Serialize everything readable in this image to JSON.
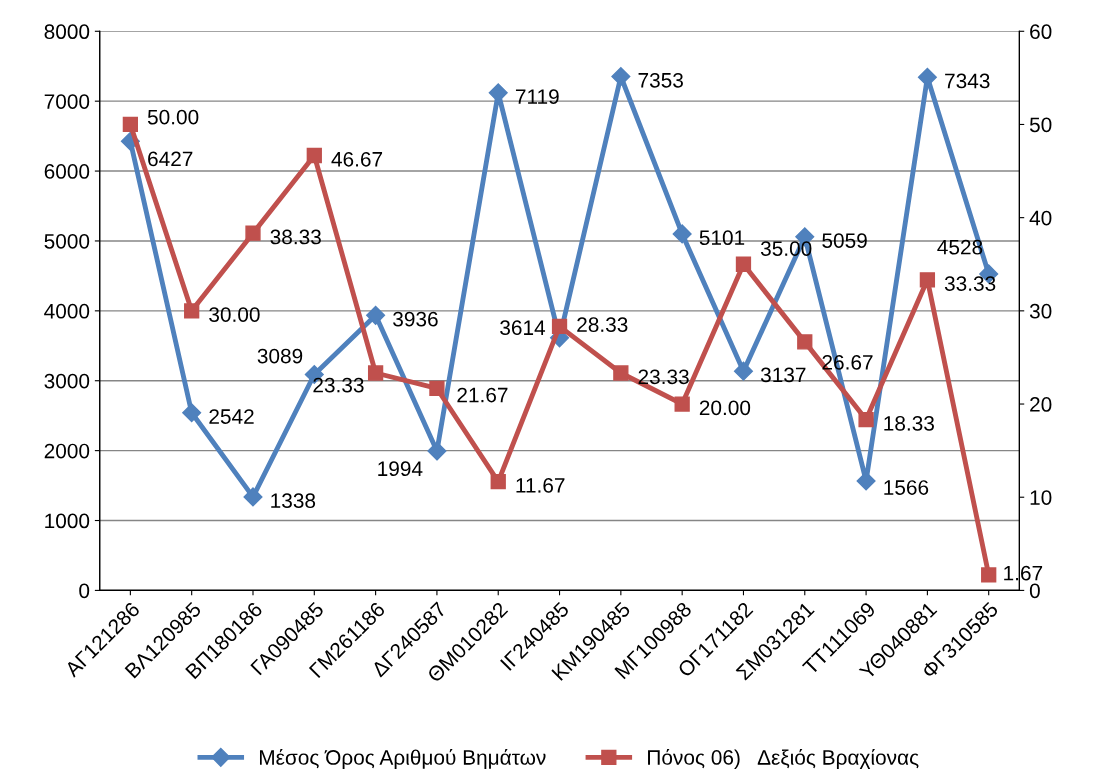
{
  "chart_data": {
    "type": "line",
    "categories": [
      "ΑΓ121286",
      "ΒΛ120985",
      "ΒΠ180186",
      "ΓΑ090485",
      "ΓΜ261186",
      "ΔΓ240587",
      "ΘΜ010282",
      "ΙΓ240485",
      "ΚΜ190485",
      "ΜΓ100988",
      "ΟΓ171182",
      "ΣΜ031281",
      "ΤΤ111069",
      "ΥΘ040881",
      "ΦΓ310585"
    ],
    "series": [
      {
        "name": "Μέσος Όρος Αριθμού Βημάτων",
        "color": "#4f81bd",
        "marker": "diamond",
        "values": [
          6427,
          2542,
          1338,
          3089,
          3936,
          1994,
          7119,
          3614,
          7353,
          5101,
          3137,
          5059,
          1566,
          7343,
          4528
        ],
        "value_labels": [
          "6427",
          "2542",
          "1338",
          "3089",
          "3936",
          "1994",
          "7119",
          "3614",
          "7353",
          "5101",
          "3137",
          "5059",
          "1566",
          "7343",
          "4528"
        ]
      },
      {
        "name": "Πόνος 06)   Δεξιός Βραχίονας",
        "color": "#c0504d",
        "marker": "square",
        "axis": "y2",
        "values": [
          50.0,
          30.0,
          38.33,
          46.67,
          23.33,
          21.67,
          11.67,
          28.33,
          23.33,
          20.0,
          35.0,
          26.67,
          18.33,
          33.33,
          1.67
        ],
        "value_labels": [
          "50.00",
          "30.00",
          "38.33",
          "46.67",
          "23.33",
          "21.67",
          "11.67",
          "28.33",
          "23.33",
          "20.00",
          "35.00",
          "26.67",
          "18.33",
          "33.33",
          "1.67"
        ]
      }
    ],
    "ylim": [
      0,
      8000
    ],
    "yticks": [
      0,
      1000,
      2000,
      3000,
      4000,
      5000,
      6000,
      7000,
      8000
    ],
    "y2lim": [
      0,
      60
    ],
    "y2ticks": [
      0,
      10,
      20,
      30,
      40,
      50,
      60
    ],
    "grid": "y",
    "legend": "bottom",
    "line_style": "solid"
  }
}
